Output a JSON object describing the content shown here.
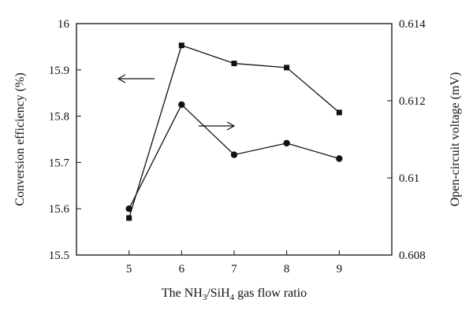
{
  "chart_data": {
    "type": "line",
    "xlabel": "The NH3/SiH4 gas flow ratio",
    "xlabel_parts": [
      {
        "text": "The NH",
        "sub": false
      },
      {
        "text": "3",
        "sub": true
      },
      {
        "text": "/SiH",
        "sub": false
      },
      {
        "text": "4",
        "sub": true
      },
      {
        "text": " gas flow ratio",
        "sub": false
      }
    ],
    "ylabel_left": "Conversion efficiency (%)",
    "ylabel_right": "Open-circuit voltage (mV)",
    "x": [
      5,
      6,
      7,
      8,
      9
    ],
    "xlim": [
      4,
      10
    ],
    "xticks": [
      "5",
      "6",
      "7",
      "8",
      "9"
    ],
    "ylim_left": [
      15.5,
      16.0
    ],
    "yticks_left": [
      "15.5",
      "15.6",
      "15.7",
      "15.8",
      "15.9",
      "16"
    ],
    "ylim_right": [
      0.608,
      0.614
    ],
    "yticks_right": [
      "0.608",
      "0.61",
      "0.612",
      "0.614"
    ],
    "grid": false,
    "series": [
      {
        "axis": "left",
        "marker": "square",
        "values": [
          15.58,
          15.953,
          15.914,
          15.905,
          15.808
        ]
      },
      {
        "axis": "right",
        "marker": "circle",
        "values": [
          0.6092,
          0.6119,
          0.6106,
          0.6109,
          0.6105
        ]
      }
    ],
    "annotations": [
      {
        "type": "arrow",
        "direction": "left",
        "points_to_axis": "left"
      },
      {
        "type": "arrow",
        "direction": "right",
        "points_to_axis": "right"
      }
    ]
  }
}
